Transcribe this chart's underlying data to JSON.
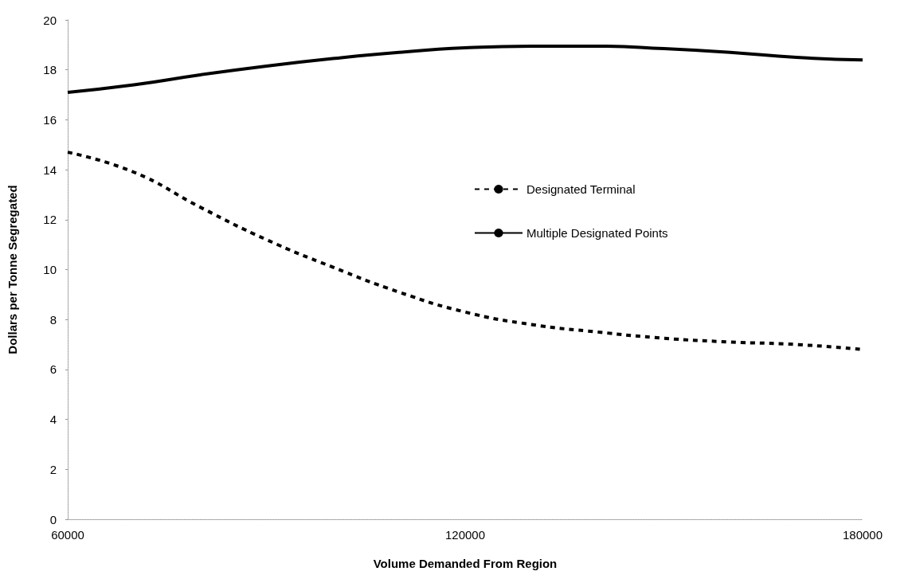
{
  "chart_data": {
    "type": "line",
    "xlabel": "Volume Demanded From Region",
    "ylabel": "Dollars per Tonne Segregated",
    "x": [
      60000,
      70000,
      80000,
      90000,
      100000,
      110000,
      120000,
      130000,
      140000,
      150000,
      160000,
      170000,
      180000
    ],
    "series": [
      {
        "name": "Designated Terminal",
        "color": "#000000",
        "line_style": "dashed",
        "values": [
          14.7,
          13.9,
          12.5,
          11.2,
          10.1,
          9.1,
          8.3,
          7.8,
          7.5,
          7.25,
          7.1,
          7.0,
          6.8
        ]
      },
      {
        "name": "Multiple Designated Points",
        "color": "#000000",
        "line_style": "solid",
        "values": [
          17.1,
          17.4,
          17.8,
          18.15,
          18.45,
          18.7,
          18.88,
          18.95,
          18.95,
          18.85,
          18.7,
          18.5,
          18.4
        ]
      }
    ],
    "xlim": [
      60000,
      180000
    ],
    "xticks": [
      60000,
      120000,
      180000
    ],
    "ylim": [
      0,
      20
    ],
    "yticks": [
      0,
      2,
      4,
      6,
      8,
      10,
      12,
      14,
      16,
      18,
      20
    ],
    "grid": false,
    "legend": "right",
    "marker": "none"
  }
}
